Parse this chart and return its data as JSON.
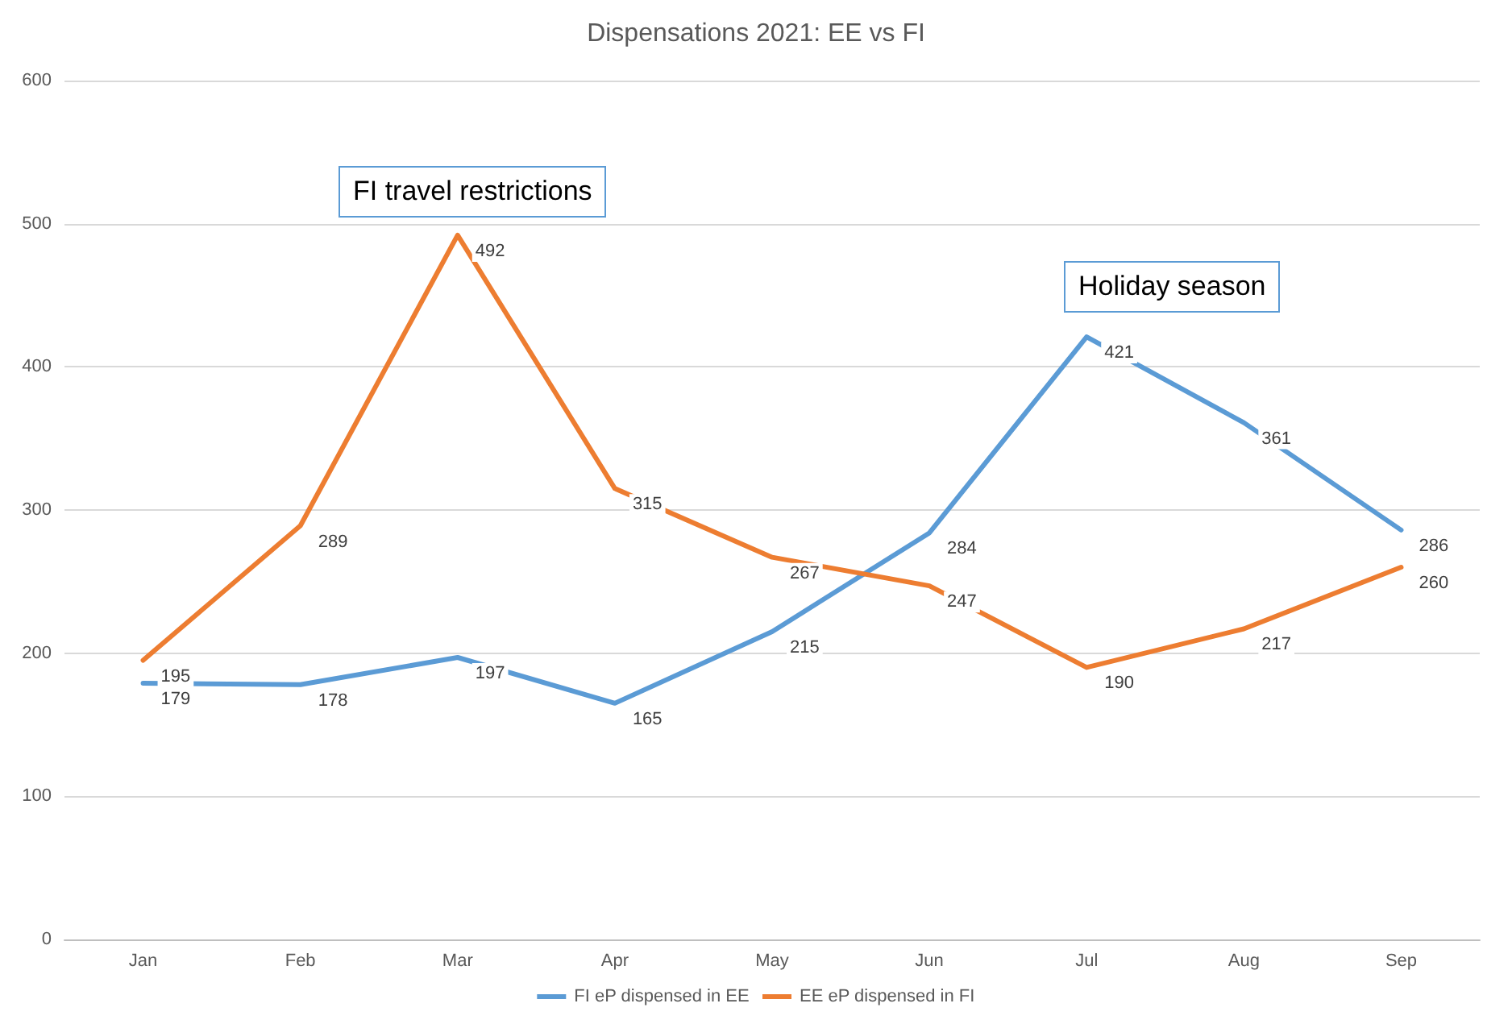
{
  "chart_data": {
    "type": "line",
    "title": "Dispensations 2021: EE vs FI",
    "categories": [
      "Jan",
      "Feb",
      "Mar",
      "Apr",
      "May",
      "Jun",
      "Jul",
      "Aug",
      "Sep"
    ],
    "series": [
      {
        "name": "FI eP dispensed in EE",
        "color": "#5b9bd5",
        "values": [
          179,
          178,
          197,
          165,
          215,
          284,
          421,
          361,
          286
        ]
      },
      {
        "name": "EE eP dispensed in FI",
        "color": "#ed7d31",
        "values": [
          195,
          289,
          492,
          315,
          267,
          247,
          190,
          217,
          260
        ]
      }
    ],
    "ylim": [
      0,
      600
    ],
    "yticks": [
      0,
      100,
      200,
      300,
      400,
      500,
      600
    ],
    "grid": "y",
    "legend": "bottom",
    "marker": "none",
    "line_style": "solid",
    "data_labels": true,
    "annotations": [
      "FI travel restrictions",
      "Holiday season"
    ]
  }
}
